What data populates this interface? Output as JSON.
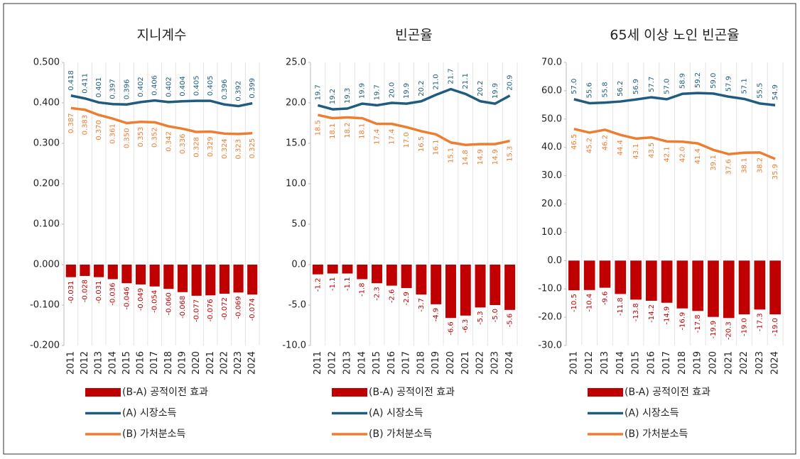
{
  "chart_data": [
    {
      "type": "combo",
      "title": "지니계수",
      "grid": true,
      "categories": [
        "2011",
        "2012",
        "2013",
        "2014",
        "2015",
        "2016",
        "2017",
        "2018",
        "2019",
        "2020",
        "2021",
        "2022",
        "2023",
        "2024"
      ],
      "ylim": [
        -0.2,
        0.5
      ],
      "yticks": [
        {
          "value": -0.2,
          "label": "-0.200"
        },
        {
          "value": -0.1,
          "label": "-0.100"
        },
        {
          "value": 0,
          "label": "0.000"
        },
        {
          "value": 0.1,
          "label": "0.100"
        },
        {
          "value": 0.2,
          "label": "0.200"
        },
        {
          "value": 0.3,
          "label": "0.300"
        },
        {
          "value": 0.4,
          "label": "0.400"
        },
        {
          "value": 0.5,
          "label": "0.500"
        }
      ],
      "series": [
        {
          "name": "(B-A) 공적이전 효과",
          "type": "bar",
          "color": "#c00000",
          "values": [
            -0.031,
            -0.028,
            -0.031,
            -0.036,
            -0.046,
            -0.049,
            -0.054,
            -0.06,
            -0.068,
            -0.077,
            -0.076,
            -0.072,
            -0.069,
            -0.074
          ],
          "value_labels": [
            "-0.031",
            "-0.028",
            "-0.031",
            "-0.036",
            "-0.046",
            "-0.049",
            "-0.054",
            "-0.060",
            "-0.068",
            "-0.077",
            "-0.076",
            "-0.072",
            "-0.069",
            "-0.074"
          ]
        },
        {
          "name": "(A) 시장소득",
          "type": "line",
          "color": "#1f5c7f",
          "values": [
            0.418,
            0.411,
            0.401,
            0.397,
            0.396,
            0.402,
            0.406,
            0.402,
            0.404,
            0.405,
            0.405,
            0.396,
            0.392,
            0.399
          ],
          "value_labels": [
            "0.418",
            "0.411",
            "0.401",
            "0.397",
            "0.396",
            "0.402",
            "0.406",
            "0.402",
            "0.404",
            "0.405",
            "0.405",
            "0.396",
            "0.392",
            "0.399"
          ]
        },
        {
          "name": "(B) 가처분소득",
          "type": "line",
          "color": "#ed7d31",
          "values": [
            0.387,
            0.383,
            0.37,
            0.361,
            0.35,
            0.353,
            0.352,
            0.342,
            0.336,
            0.328,
            0.329,
            0.324,
            0.323,
            0.325
          ],
          "value_labels": [
            "0.387",
            "0.383",
            "0.370",
            "0.361",
            "0.350",
            "0.353",
            "0.352",
            "0.342",
            "0.336",
            "0.328",
            "0.329",
            "0.324",
            "0.323",
            "0.325"
          ]
        }
      ]
    },
    {
      "type": "combo",
      "title": "빈곤율",
      "grid": true,
      "categories": [
        "2011",
        "2012",
        "2013",
        "2014",
        "2015",
        "2016",
        "2017",
        "2018",
        "2019",
        "2020",
        "2021",
        "2022",
        "2023",
        "2024"
      ],
      "ylim": [
        -10,
        25
      ],
      "yticks": [
        {
          "value": -10,
          "label": "-10.0"
        },
        {
          "value": -5,
          "label": "-5.0"
        },
        {
          "value": 0,
          "label": "0.0"
        },
        {
          "value": 5,
          "label": "5.0"
        },
        {
          "value": 10,
          "label": "10.0"
        },
        {
          "value": 15,
          "label": "15.0"
        },
        {
          "value": 20,
          "label": "20.0"
        },
        {
          "value": 25,
          "label": "25.0"
        }
      ],
      "series": [
        {
          "name": "(B-A) 공적이전 효과",
          "type": "bar",
          "color": "#c00000",
          "values": [
            -1.2,
            -1.1,
            -1.1,
            -1.8,
            -2.3,
            -2.6,
            -2.9,
            -3.7,
            -4.9,
            -6.6,
            -6.3,
            -5.3,
            -5.0,
            -5.6
          ],
          "value_labels": [
            "-1.2",
            "-1.1",
            "-1.1",
            "-1.8",
            "-2.3",
            "-2.6",
            "-2.9",
            "-3.7",
            "-4.9",
            "-6.6",
            "-6.3",
            "-5.3",
            "-5.0",
            "-5.6"
          ]
        },
        {
          "name": "(A) 시장소득",
          "type": "line",
          "color": "#1f5c7f",
          "values": [
            19.7,
            19.2,
            19.3,
            19.9,
            19.7,
            20.0,
            19.9,
            20.2,
            21.0,
            21.7,
            21.1,
            20.2,
            19.9,
            20.9
          ],
          "value_labels": [
            "19.7",
            "19.2",
            "19.3",
            "19.9",
            "19.7",
            "20.0",
            "19.9",
            "20.2",
            "21.0",
            "21.7",
            "21.1",
            "20.2",
            "19.9",
            "20.9"
          ]
        },
        {
          "name": "(B) 가처분소득",
          "type": "line",
          "color": "#ed7d31",
          "values": [
            18.5,
            18.1,
            18.2,
            18.1,
            17.4,
            17.4,
            17.0,
            16.5,
            16.1,
            15.1,
            14.8,
            14.9,
            14.9,
            15.3
          ],
          "value_labels": [
            "18.5",
            "18.1",
            "18.2",
            "18.1",
            "17.4",
            "17.4",
            "17.0",
            "16.5",
            "16.1",
            "15.1",
            "14.8",
            "14.9",
            "14.9",
            "15.3"
          ]
        }
      ]
    },
    {
      "type": "combo",
      "title": "65세 이상 노인 빈곤율",
      "grid": true,
      "categories": [
        "2011",
        "2012",
        "2013",
        "2014",
        "2015",
        "2016",
        "2017",
        "2018",
        "2019",
        "2020",
        "2021",
        "2022",
        "2023",
        "2024"
      ],
      "ylim": [
        -30,
        70
      ],
      "yticks": [
        {
          "value": -30,
          "label": "-30.0"
        },
        {
          "value": -20,
          "label": "-20.0"
        },
        {
          "value": -10,
          "label": "-10.0"
        },
        {
          "value": 0,
          "label": "0.0"
        },
        {
          "value": 10,
          "label": "10.0"
        },
        {
          "value": 20,
          "label": "20.0"
        },
        {
          "value": 30,
          "label": "30.0"
        },
        {
          "value": 40,
          "label": "40.0"
        },
        {
          "value": 50,
          "label": "50.0"
        },
        {
          "value": 60,
          "label": "60.0"
        },
        {
          "value": 70,
          "label": "70.0"
        }
      ],
      "series": [
        {
          "name": "(B-A) 공적이전 효과",
          "type": "bar",
          "color": "#c00000",
          "values": [
            -10.5,
            -10.4,
            -9.6,
            -11.8,
            -13.8,
            -14.2,
            -14.9,
            -16.9,
            -17.8,
            -19.9,
            -20.3,
            -19.0,
            -17.3,
            -19.0
          ],
          "value_labels": [
            "-10.5",
            "-10.4",
            "-9.6",
            "-11.8",
            "-13.8",
            "-14.2",
            "-14.9",
            "-16.9",
            "-17.8",
            "-19.9",
            "-20.3",
            "-19.0",
            "-17.3",
            "-19.0"
          ]
        },
        {
          "name": "(A) 시장소득",
          "type": "line",
          "color": "#1f5c7f",
          "values": [
            57.0,
            55.6,
            55.8,
            56.2,
            56.9,
            57.7,
            57.0,
            58.9,
            59.2,
            59.0,
            57.9,
            57.1,
            55.5,
            54.9
          ],
          "value_labels": [
            "57.0",
            "55.6",
            "55.8",
            "56.2",
            "56.9",
            "57.7",
            "57.0",
            "58.9",
            "59.2",
            "59.0",
            "57.9",
            "57.1",
            "55.5",
            "54.9"
          ]
        },
        {
          "name": "(B) 가처분소득",
          "type": "line",
          "color": "#ed7d31",
          "values": [
            46.5,
            45.2,
            46.2,
            44.4,
            43.1,
            43.5,
            42.1,
            42.0,
            41.4,
            39.1,
            37.6,
            38.1,
            38.2,
            35.9
          ],
          "value_labels": [
            "46.5",
            "45.2",
            "46.2",
            "44.4",
            "43.1",
            "43.5",
            "42.1",
            "42.0",
            "41.4",
            "39.1",
            "37.6",
            "38.1",
            "38.2",
            "35.9"
          ]
        }
      ]
    }
  ]
}
